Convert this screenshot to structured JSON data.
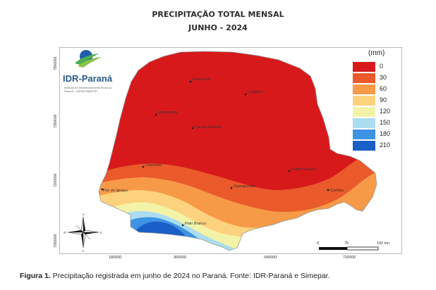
{
  "title": {
    "line1": "PRECIPITAÇÃO TOTAL MENSAL",
    "line2": "JUNHO - 2024"
  },
  "logo": {
    "name": "IDR-Paraná",
    "subtitle": "Instituto de Desenvolvimento Rural do Paraná – IAPAR-EMATER"
  },
  "legend": {
    "title": "(mm)",
    "items": [
      {
        "label": "0",
        "color": "#d7191c"
      },
      {
        "label": "30",
        "color": "#ea5a2b"
      },
      {
        "label": "60",
        "color": "#f79a48"
      },
      {
        "label": "90",
        "color": "#fdd27e"
      },
      {
        "label": "120",
        "color": "#f3f3a8"
      },
      {
        "label": "150",
        "color": "#abdcef"
      },
      {
        "label": "180",
        "color": "#3f93e3"
      },
      {
        "label": "210",
        "color": "#1a5ec7"
      }
    ]
  },
  "cities": [
    {
      "name": "Paranavaí"
    },
    {
      "name": "Londrina"
    },
    {
      "name": "Umuarama"
    },
    {
      "name": "Campo Mourão"
    },
    {
      "name": "Cascavel"
    },
    {
      "name": "Ponta Grossa"
    },
    {
      "name": "Foz do Iguaçu"
    },
    {
      "name": "Guarapuava"
    },
    {
      "name": "Curitiba"
    },
    {
      "name": "Pato Branco"
    }
  ],
  "axes": {
    "y_ticks": [
      "7500000",
      "7350000",
      "7200000",
      "7050000"
    ],
    "x_ticks": [
      "180000",
      "360000",
      "540000",
      "720000"
    ]
  },
  "scale_bar": {
    "labels": [
      "0",
      "75",
      "150 km"
    ]
  },
  "north_arrow": {
    "n": "N",
    "s": "S",
    "e": "E",
    "w": "W"
  },
  "caption": {
    "bold": "Figura 1.",
    "text": " Precipitação registrada em junho de 2024 no Paraná. Fonte: IDR-Paraná e Simepar."
  }
}
